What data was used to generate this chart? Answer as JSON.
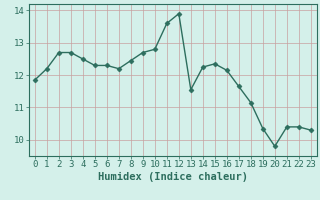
{
  "xlabel": "Humidex (Indice chaleur)",
  "x_values": [
    0,
    1,
    2,
    3,
    4,
    5,
    6,
    7,
    8,
    9,
    10,
    11,
    12,
    13,
    14,
    15,
    16,
    17,
    18,
    19,
    20,
    21,
    22,
    23
  ],
  "y_values": [
    11.85,
    12.2,
    12.7,
    12.7,
    12.5,
    12.3,
    12.3,
    12.2,
    12.45,
    12.7,
    12.8,
    13.6,
    13.9,
    11.55,
    12.25,
    12.35,
    12.15,
    11.65,
    11.15,
    10.35,
    9.8,
    10.4,
    10.4,
    10.3
  ],
  "line_color": "#2d6e5e",
  "marker": "D",
  "marker_size": 2.5,
  "linewidth": 1.0,
  "ylim": [
    9.5,
    14.2
  ],
  "xlim": [
    -0.5,
    23.5
  ],
  "yticks": [
    10,
    11,
    12,
    13,
    14
  ],
  "xticks": [
    0,
    1,
    2,
    3,
    4,
    5,
    6,
    7,
    8,
    9,
    10,
    11,
    12,
    13,
    14,
    15,
    16,
    17,
    18,
    19,
    20,
    21,
    22,
    23
  ],
  "bg_color": "#d4f0ea",
  "grid_color": "#c8a0a0",
  "tick_label_fontsize": 6.5,
  "xlabel_fontsize": 7.5,
  "xlabel_color": "#2d6e5e",
  "spine_color": "#2d6e5e"
}
